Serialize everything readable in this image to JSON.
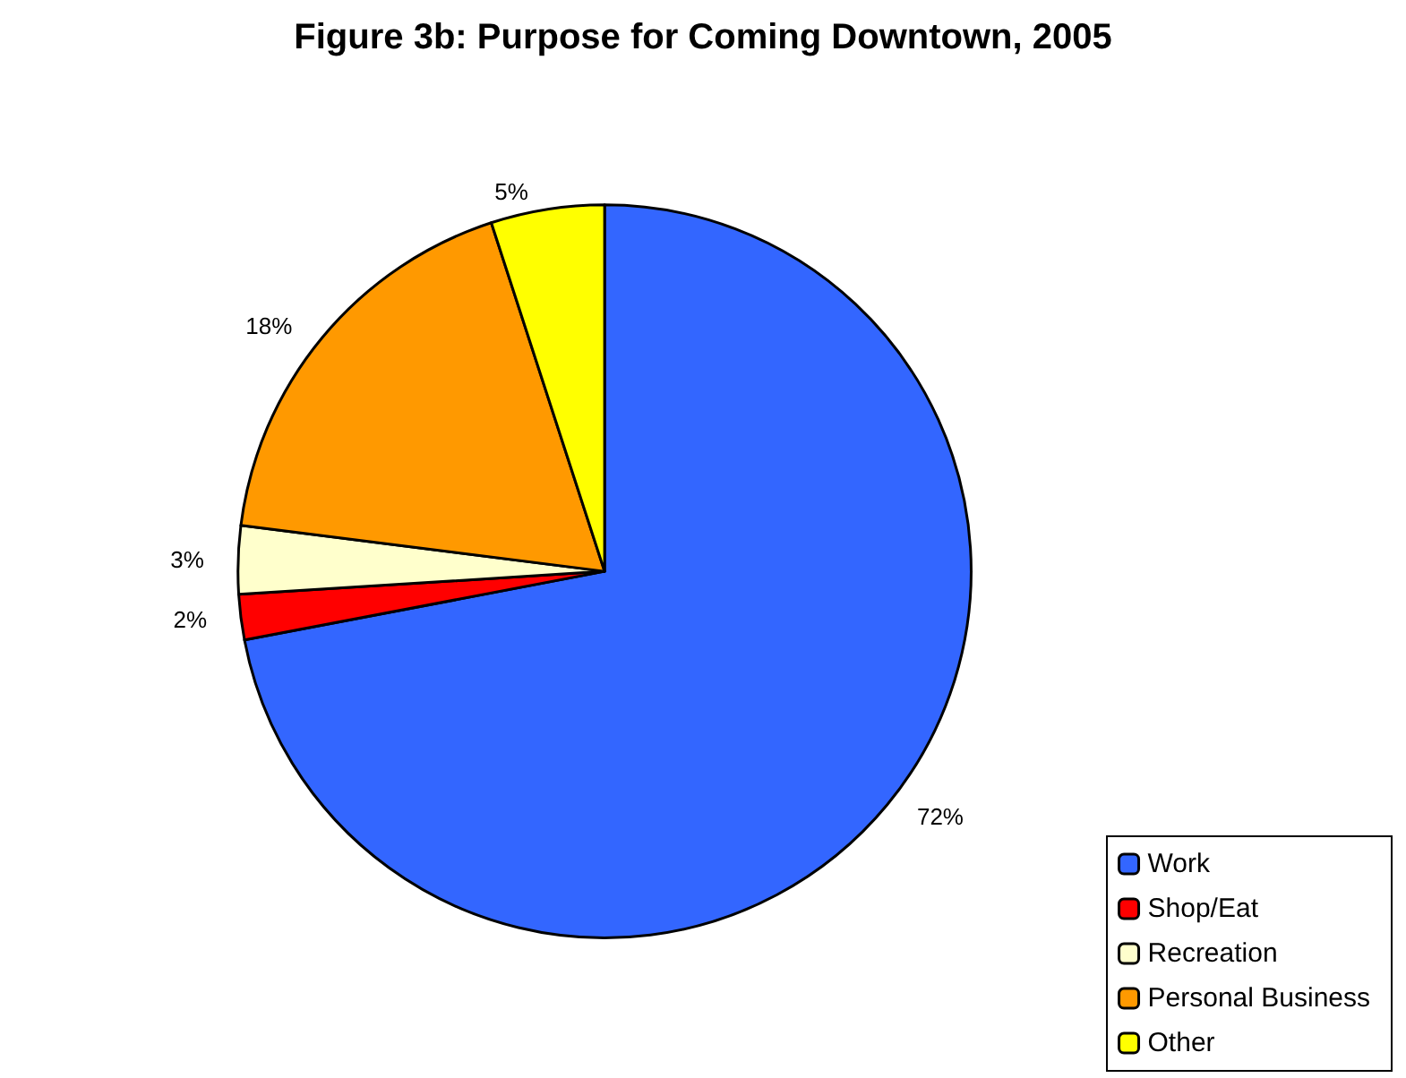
{
  "chart_data": {
    "type": "pie",
    "title": "Figure 3b: Purpose for Coming Downtown, 2005",
    "categories": [
      "Work",
      "Shop/Eat",
      "Recreation",
      "Personal Business",
      "Other"
    ],
    "values": [
      72,
      2,
      3,
      18,
      5
    ],
    "value_labels": [
      "72%",
      "2%",
      "3%",
      "18%",
      "5%"
    ],
    "colors": [
      "#3366ff",
      "#ff0000",
      "#ffffcc",
      "#ff9900",
      "#ffff00"
    ],
    "legend": "bottom right"
  }
}
